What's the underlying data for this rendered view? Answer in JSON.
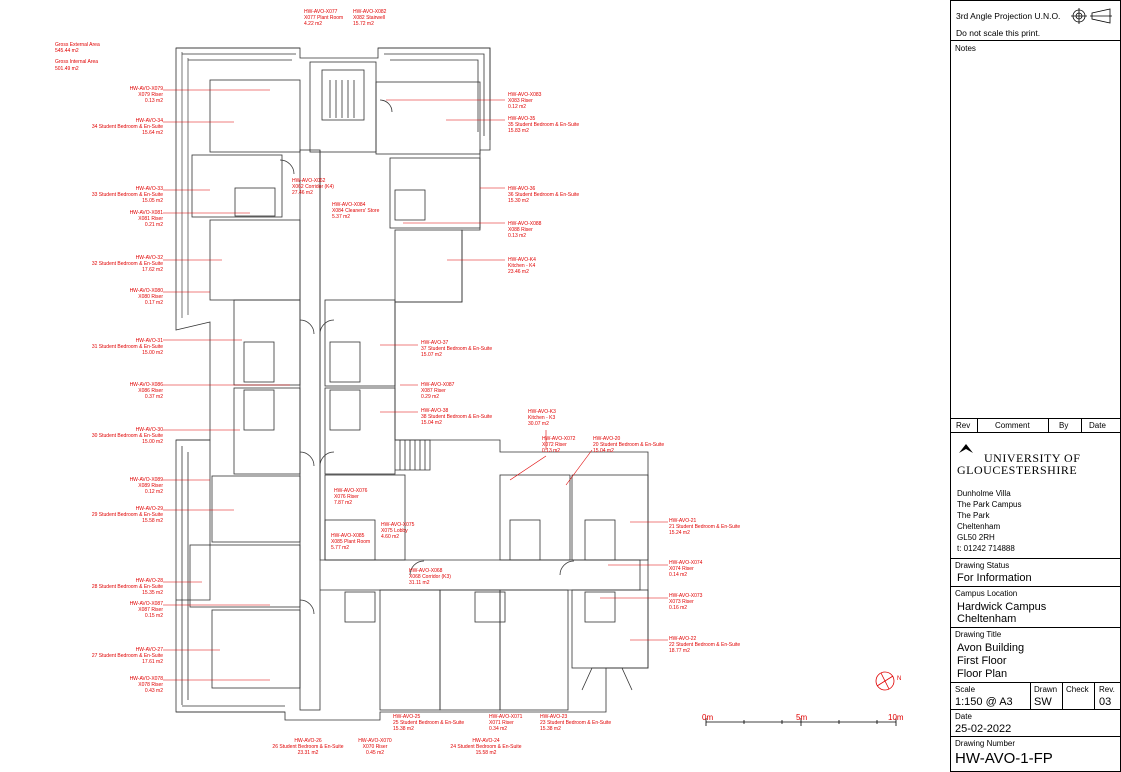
{
  "areas": {
    "gea_label": "Gross External Area",
    "gea_value": "545.44 m2",
    "gia_label": "Gross Internal Area",
    "gia_value": "501.49 m2"
  },
  "rooms": [
    {
      "id": "HW-AVO-X077",
      "name": "X077 Plant Room",
      "area": "4.22 m2"
    },
    {
      "id": "HW-AVO-X082",
      "name": "X082 Stairwell",
      "area": "15.72 m2"
    },
    {
      "id": "HW-AVO-X079",
      "name": "X079 Riser",
      "area": "0.13 m2"
    },
    {
      "id": "HW-AVO-34",
      "name": "34 Student Bedroom & En-Suite",
      "area": "15.64 m2"
    },
    {
      "id": "HW-AVO-X083",
      "name": "X083 Riser",
      "area": "0.12 m2"
    },
    {
      "id": "HW-AVO-35",
      "name": "35 Student Bedroom & En-Suite",
      "area": "15.83 m2"
    },
    {
      "id": "HW-AVO-X062",
      "name": "X062 Corridor (K4)",
      "area": "27.46 m2"
    },
    {
      "id": "HW-AVO-33",
      "name": "33 Student Bedroom & En-Suite",
      "area": "15.05 m2"
    },
    {
      "id": "HW-AVO-36",
      "name": "36 Student Bedroom & En-Suite",
      "area": "15.30 m2"
    },
    {
      "id": "HW-AVO-X084",
      "name": "X084 Cleaners' Store",
      "area": "5.37 m2"
    },
    {
      "id": "HW-AVO-X081",
      "name": "X081 Riser",
      "area": "0.21 m2"
    },
    {
      "id": "HW-AVO-X088",
      "name": "X088 Riser",
      "area": "0.13 m2"
    },
    {
      "id": "HW-AVO-32",
      "name": "32 Student Bedroom & En-Suite",
      "area": "17.62 m2"
    },
    {
      "id": "HW-AVO-K4",
      "name": "Kitchen - K4",
      "area": "23.46 m2"
    },
    {
      "id": "HW-AVO-X080",
      "name": "X080 Riser",
      "area": "0.17 m2"
    },
    {
      "id": "HW-AVO-31",
      "name": "31 Student Bedroom & En-Suite",
      "area": "15.00 m2"
    },
    {
      "id": "HW-AVO-37",
      "name": "37 Student Bedroom & En-Suite",
      "area": "15.07 m2"
    },
    {
      "id": "HW-AVO-X086",
      "name": "X086 Riser",
      "area": "0.37 m2"
    },
    {
      "id": "HW-AVO-X087",
      "name": "X087 Riser",
      "area": "0.29 m2"
    },
    {
      "id": "HW-AVO-38",
      "name": "38 Student Bedroom & En-Suite",
      "area": "15.04 m2"
    },
    {
      "id": "HW-AVO-K3",
      "name": "Kitchen - K3",
      "area": "30.07 m2"
    },
    {
      "id": "HW-AVO-30",
      "name": "30 Student Bedroom & En-Suite",
      "area": "15.00 m2"
    },
    {
      "id": "HW-AVO-X072",
      "name": "X072 Riser",
      "area": "0.13 m2"
    },
    {
      "id": "HW-AVO-20",
      "name": "20 Student Bedroom & En-Suite",
      "area": "15.04 m2"
    },
    {
      "id": "HW-AVO-X089",
      "name": "X089 Riser",
      "area": "0.12 m2"
    },
    {
      "id": "HW-AVO-X076",
      "name": "X076 Riser",
      "area": "7.87 m2"
    },
    {
      "id": "HW-AVO-29",
      "name": "29 Student Bedroom & En-Suite",
      "area": "15.58 m2"
    },
    {
      "id": "HW-AVO-21",
      "name": "21 Student Bedroom & En-Suite",
      "area": "15.24 m2"
    },
    {
      "id": "HW-AVO-X075",
      "name": "X075 Lobby",
      "area": "4.60 m2"
    },
    {
      "id": "HW-AVO-X085",
      "name": "X085 Plant Room",
      "area": "5.77 m2"
    },
    {
      "id": "HW-AVO-X074",
      "name": "X074 Riser",
      "area": "0.14 m2"
    },
    {
      "id": "HW-AVO-X068",
      "name": "X068 Corridor (K3)",
      "area": "31.11 m2"
    },
    {
      "id": "HW-AVO-28",
      "name": "28 Student Bedroom & En-Suite",
      "area": "15.35 m2"
    },
    {
      "id": "HW-AVO-X073",
      "name": "X073 Riser",
      "area": "0.16 m2"
    },
    {
      "id": "HW-AVO-X087b",
      "name": "X087 Riser",
      "area": "0.15 m2"
    },
    {
      "id": "HW-AVO-22",
      "name": "22 Student Bedroom & En-Suite",
      "area": "18.77 m2"
    },
    {
      "id": "HW-AVO-27",
      "name": "27 Student Bedroom & En-Suite",
      "area": "17.61 m2"
    },
    {
      "id": "HW-AVO-X078",
      "name": "X078 Riser",
      "area": "0.43 m2"
    },
    {
      "id": "HW-AVO-25",
      "name": "25 Student Bedroom & En-Suite",
      "area": "15.38 m2"
    },
    {
      "id": "HW-AVO-X071",
      "name": "X071 Riser",
      "area": "0.34 m2"
    },
    {
      "id": "HW-AVO-23",
      "name": "23 Student Bedroom & En-Suite",
      "area": "15.38 m2"
    },
    {
      "id": "HW-AVO-26",
      "name": "26 Student Bedroom & En-Suite",
      "area": "23.31 m2"
    },
    {
      "id": "HW-AVO-X070",
      "name": "X070 Riser",
      "area": "0.45 m2"
    },
    {
      "id": "HW-AVO-24",
      "name": "24 Student Bedroom & En-Suite",
      "area": "15.58 m2"
    }
  ],
  "scale_bar": {
    "t0": "0m",
    "t1": "5m",
    "t2": "10m"
  },
  "north_label": "N",
  "title_block": {
    "projection": "3rd Angle Projection U.N.O.",
    "do_not_scale": "Do not scale this print.",
    "notes_label": "Notes",
    "rev_headers": [
      "Rev",
      "Comment",
      "By",
      "Date"
    ],
    "university_line1": "UNIVERSITY OF",
    "university_line2": "GLOUCESTERSHIRE",
    "address": [
      "Dunholme Villa",
      "The Park Campus",
      "The Park",
      "Cheltenham",
      "GL50 2RH",
      "t: 01242 714888"
    ],
    "status_label": "Drawing Status",
    "status_value": "For Information",
    "campus_label": "Campus Location",
    "campus_value1": "Hardwick Campus",
    "campus_value2": "Cheltenham",
    "title_label": "Drawing Title",
    "title_value1": "Avon Building",
    "title_value2": "First Floor",
    "title_value3": "Floor Plan",
    "scale_label": "Scale",
    "scale_value": "1:150 @ A3",
    "drawn_label": "Drawn",
    "drawn_value": "SW",
    "check_label": "Check",
    "rev_label": "Rev.",
    "rev_value": "03",
    "date_label": "Date",
    "date_value": "25-02-2022",
    "number_label": "Drawing Number",
    "number_value": "HW-AVO-1-FP"
  }
}
